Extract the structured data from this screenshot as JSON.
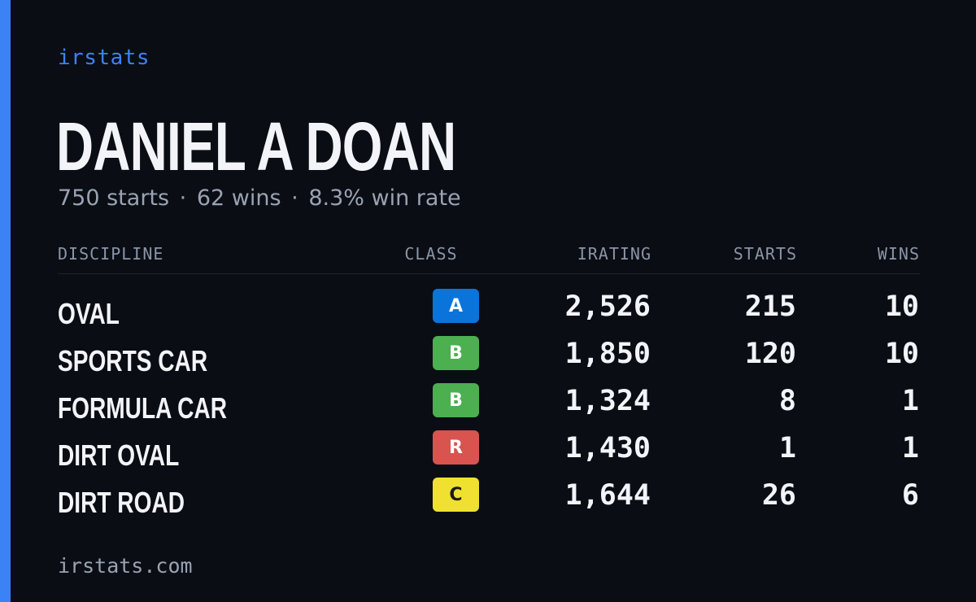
{
  "brand": "irstats",
  "driver": {
    "name": "DANIEL A DOAN"
  },
  "summary": {
    "starts": "750 starts",
    "wins": "62 wins",
    "win_rate": "8.3% win rate",
    "separator": "·"
  },
  "table": {
    "headers": {
      "discipline": "DISCIPLINE",
      "class": "CLASS",
      "irating": "IRATING",
      "starts": "STARTS",
      "wins": "WINS"
    },
    "rows": [
      {
        "discipline": "OVAL",
        "class": "A",
        "class_bg": "#0a74da",
        "class_fg": "#ffffff",
        "irating": "2,526",
        "starts": "215",
        "wins": "10"
      },
      {
        "discipline": "SPORTS CAR",
        "class": "B",
        "class_bg": "#4caf50",
        "class_fg": "#ffffff",
        "irating": "1,850",
        "starts": "120",
        "wins": "10"
      },
      {
        "discipline": "FORMULA CAR",
        "class": "B",
        "class_bg": "#4caf50",
        "class_fg": "#ffffff",
        "irating": "1,324",
        "starts": "8",
        "wins": "1"
      },
      {
        "discipline": "DIRT OVAL",
        "class": "R",
        "class_bg": "#d9534f",
        "class_fg": "#ffffff",
        "irating": "1,430",
        "starts": "1",
        "wins": "1"
      },
      {
        "discipline": "DIRT ROAD",
        "class": "C",
        "class_bg": "#f0e130",
        "class_fg": "#1a1a1a",
        "irating": "1,644",
        "starts": "26",
        "wins": "6"
      }
    ]
  },
  "footer": {
    "url": "irstats.com"
  },
  "colors": {
    "background": "#0a0d14",
    "accent": "#3b82f6",
    "text_primary": "#f2f4f8",
    "text_muted": "#9aa3b3"
  }
}
